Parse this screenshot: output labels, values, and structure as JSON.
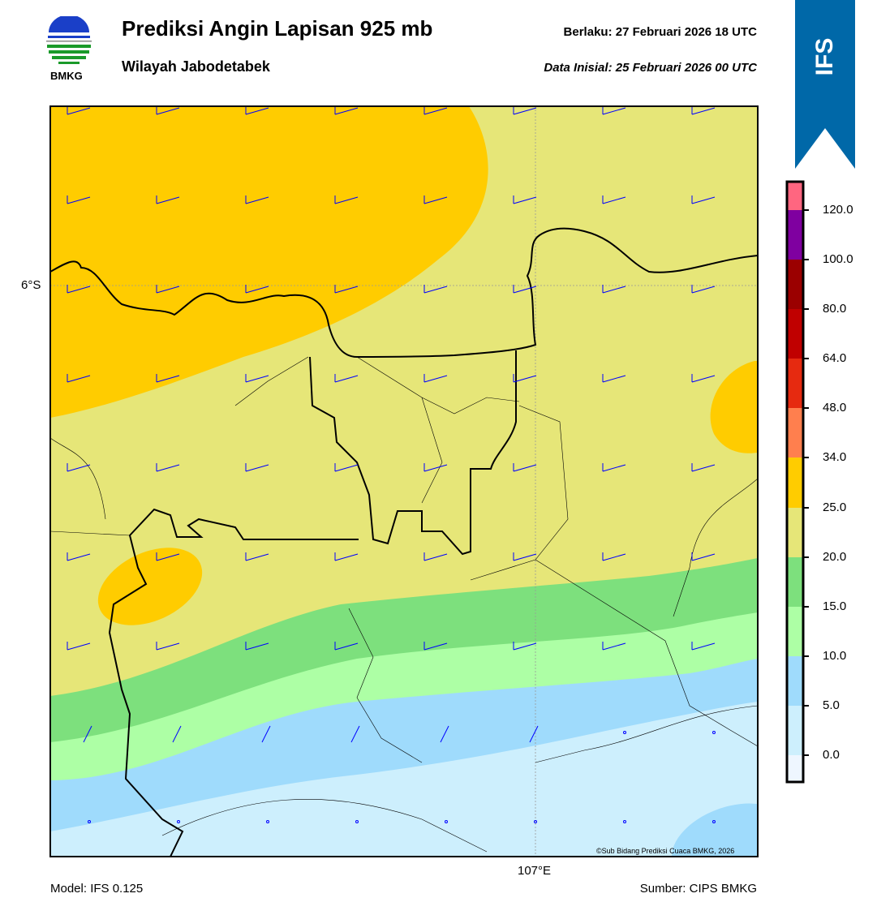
{
  "header": {
    "logo_text": "BMKG",
    "title": "Prediksi Angin Lapisan 925 mb",
    "subtitle": "Wilayah Jabodetabek",
    "valid_time": "Berlaku:  27 Februari 2026 18 UTC",
    "initial_time": "Data Inisial:  25 Februari 2026 00 UTC",
    "model_badge": "IFS",
    "badge_color": "#0068a8"
  },
  "map": {
    "lat_label": "6°S",
    "lon_label": "107°E",
    "copyright": "©Sub Bidang Prediksi Cuaca BMKG, 2026",
    "barb_color": "#0000ff"
  },
  "colorbar": {
    "ticks": [
      "120.0",
      "100.0",
      "80.0",
      "64.0",
      "48.0",
      "34.0",
      "25.0",
      "20.0",
      "15.0",
      "10.0",
      "5.0",
      "0.0"
    ],
    "colors": [
      "#ff6680",
      "#7f00a0",
      "#9b0000",
      "#c00000",
      "#e62a10",
      "#ff7f4e",
      "#ffcc00",
      "#e6e678",
      "#7de07d",
      "#adffa5",
      "#9fdbfc",
      "#cdeffd",
      "#eef6ff"
    ]
  },
  "footer": {
    "model": "Model: IFS 0.125",
    "source": "Sumber: CIPS BMKG"
  }
}
